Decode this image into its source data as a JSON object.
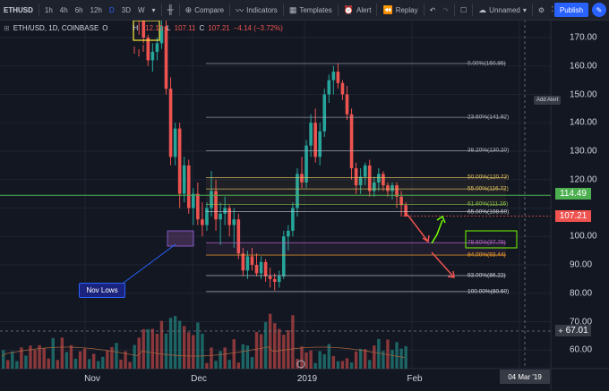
{
  "toolbar": {
    "symbol": "ETHUSD",
    "intervals": [
      "1h",
      "4h",
      "6h",
      "12h",
      "D",
      "3D",
      "W"
    ],
    "compare_label": "Compare",
    "indicators_label": "Indicators",
    "templates_label": "Templates",
    "alert_label": "Alert",
    "replay_label": "Replay",
    "layout_name": "Unnamed",
    "publish_label": "Publish"
  },
  "legend": {
    "title": "ETH/USD, 1D, COINBASE",
    "open_label": "O",
    "high_label": "H",
    "high_value": "112.10",
    "low_label": "L",
    "low_value": "107.11",
    "close_label": "C",
    "close_value": "107.21",
    "change": "−4.14 (−3.72%)"
  },
  "price_axis": {
    "labels": [
      {
        "value": 170.0,
        "text": "170.00"
      },
      {
        "value": 160.0,
        "text": "160.00"
      },
      {
        "value": 150.0,
        "text": "150.00"
      },
      {
        "value": 140.0,
        "text": "140.00"
      },
      {
        "value": 130.0,
        "text": "130.00"
      },
      {
        "value": 120.0,
        "text": "120.00"
      },
      {
        "value": 100.0,
        "text": "100.00"
      },
      {
        "value": 90.0,
        "text": "90.00"
      },
      {
        "value": 80.0,
        "text": "80.00"
      },
      {
        "value": 70.0,
        "text": "70.00"
      },
      {
        "value": 60.0,
        "text": "60.00"
      }
    ],
    "green_line_price": "114.49",
    "last_price": "107.21",
    "crosshair_price": "67.01",
    "add_alert_label": "Add Alert"
  },
  "time_axis": {
    "labels": [
      "Nov",
      "Dec",
      "2019",
      "Feb"
    ],
    "crosshair_date": "04 Mar '19"
  },
  "fib_levels": [
    {
      "label": "0.00%(160.86)",
      "price": 160.86,
      "color": "#b2b5be"
    },
    {
      "label": "23.60%(141.92)",
      "price": 141.92,
      "color": "#b2b5be"
    },
    {
      "label": "38.20%(130.20)",
      "price": 130.2,
      "color": "#b2b5be"
    },
    {
      "label": "50.00%(120.73)",
      "price": 120.73,
      "color": "#e0c060"
    },
    {
      "label": "55.00%(116.72)",
      "price": 116.72,
      "color": "#e0c060"
    },
    {
      "label": "61.80%(111.26)",
      "price": 111.26,
      "color": "#8bc34a"
    },
    {
      "label": "65.00%(108.69)",
      "price": 108.69,
      "color": "#d1d4dc"
    },
    {
      "label": "78.60%(97.78)",
      "price": 97.78,
      "color": "#ba68c8"
    },
    {
      "label": "84.00%(93.44)",
      "price": 93.44,
      "color": "#ffa726"
    },
    {
      "label": "93.00%(86.22)",
      "price": 86.22,
      "color": "#d1d4dc"
    },
    {
      "label": "100.00%(80.60)",
      "price": 80.6,
      "color": "#d1d4dc"
    }
  ],
  "annotation": {
    "nov_lows_label": "Nov Lows"
  },
  "colors": {
    "up": "#26a69a",
    "down": "#ef5350",
    "support": "#4caf50",
    "accent": "#2962ff",
    "highlight": "#ffeb3b"
  },
  "chart_data": {
    "type": "candlestick",
    "symbol": "ETH/USD",
    "interval": "1D",
    "exchange": "COINBASE",
    "candles_ohlc": [
      [
        200,
        205,
        196,
        198
      ],
      [
        198,
        202,
        195,
        200
      ],
      [
        200,
        201,
        185,
        188
      ],
      [
        188,
        190,
        176,
        181
      ],
      [
        181,
        184,
        171,
        176
      ],
      [
        176,
        180,
        168,
        170
      ],
      [
        170,
        171,
        160,
        162
      ],
      [
        162,
        168,
        158,
        165
      ],
      [
        165,
        170,
        162,
        168
      ],
      [
        168,
        176,
        166,
        174
      ],
      [
        174,
        176,
        150,
        152
      ],
      [
        152,
        156,
        125,
        128
      ],
      [
        128,
        140,
        125,
        138
      ],
      [
        138,
        140,
        110,
        115
      ],
      [
        115,
        128,
        112,
        125
      ],
      [
        125,
        127,
        108,
        110
      ],
      [
        110,
        117,
        104,
        115
      ],
      [
        115,
        119,
        104,
        106
      ],
      [
        106,
        112,
        100,
        104
      ],
      [
        104,
        112,
        102,
        110
      ],
      [
        110,
        123,
        107,
        116
      ],
      [
        116,
        120,
        102,
        106
      ],
      [
        106,
        112,
        97,
        108
      ],
      [
        108,
        114,
        104,
        110
      ],
      [
        110,
        111,
        100,
        104
      ],
      [
        104,
        110,
        96,
        106
      ],
      [
        106,
        108,
        92,
        94
      ],
      [
        94,
        96,
        86,
        88
      ],
      [
        88,
        95,
        85,
        93
      ],
      [
        93,
        96,
        88,
        90
      ],
      [
        90,
        94,
        86,
        87
      ],
      [
        87,
        93,
        85,
        91
      ],
      [
        91,
        92,
        84,
        86
      ],
      [
        86,
        89,
        82,
        85
      ],
      [
        85,
        87,
        81,
        84
      ],
      [
        84,
        88,
        82,
        86
      ],
      [
        86,
        102,
        85,
        100
      ],
      [
        100,
        104,
        95,
        102
      ],
      [
        102,
        112,
        100,
        110
      ],
      [
        110,
        124,
        107,
        122
      ],
      [
        122,
        128,
        117,
        119
      ],
      [
        119,
        134,
        117,
        132
      ],
      [
        132,
        143,
        128,
        140
      ],
      [
        140,
        145,
        126,
        128
      ],
      [
        128,
        140,
        125,
        137
      ],
      [
        137,
        152,
        135,
        150
      ],
      [
        150,
        157,
        147,
        155
      ],
      [
        155,
        160,
        150,
        158
      ],
      [
        158,
        161,
        152,
        154
      ],
      [
        154,
        155,
        148,
        150
      ],
      [
        150,
        153,
        141,
        143
      ],
      [
        143,
        145,
        120,
        124
      ],
      [
        124,
        126,
        115,
        118
      ],
      [
        118,
        124,
        115,
        121
      ],
      [
        121,
        126,
        118,
        125
      ],
      [
        125,
        127,
        114,
        116
      ],
      [
        116,
        121,
        114,
        119
      ],
      [
        119,
        124,
        116,
        122
      ],
      [
        122,
        123,
        116,
        118
      ],
      [
        118,
        119,
        114,
        116
      ],
      [
        116,
        119,
        113,
        118
      ],
      [
        118,
        119,
        110,
        114
      ],
      [
        114,
        116,
        107,
        111
      ],
      [
        111,
        112,
        107,
        107
      ]
    ],
    "fib_retracement": {
      "high": 160.86,
      "low": 80.6
    },
    "horizontal_line": 114.49,
    "last_price": 107.21,
    "y_range": [
      55,
      172
    ]
  }
}
